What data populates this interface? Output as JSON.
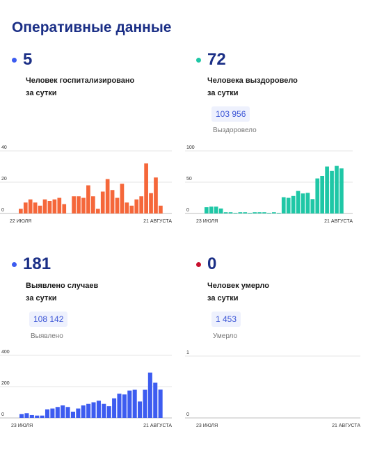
{
  "title": "Оперативные данные",
  "colors": {
    "title": "#1b2f86",
    "hospitalized": "#f5673a",
    "recovered": "#1fc7a6",
    "cases": "#3d5cf0",
    "deaths": "#c8102e",
    "badge_bg": "#eef1fd",
    "badge_text": "#3b55d6"
  },
  "cards": [
    {
      "id": "hospitalized",
      "value": "5",
      "desc_line1": "Человек госпитализировано",
      "desc_line2": "за сутки",
      "total": "",
      "total_label": ""
    },
    {
      "id": "recovered",
      "value": "72",
      "desc_line1": "Человека выздоровело",
      "desc_line2": "за сутки",
      "total": "103 956",
      "total_label": "Выздоровело"
    },
    {
      "id": "cases",
      "value": "181",
      "desc_line1": "Выявлено случаев",
      "desc_line2": "за сутки",
      "total": "108 142",
      "total_label": "Выявлено"
    },
    {
      "id": "deaths",
      "value": "0",
      "desc_line1": "Человек умерло",
      "desc_line2": "за сутки",
      "total": "1 453",
      "total_label": "Умерло"
    }
  ],
  "chart_data": [
    {
      "type": "bar",
      "title": "",
      "xlabel": "",
      "ylabel": "",
      "ylim": [
        0,
        40
      ],
      "yticks": [
        "0",
        "20",
        "40"
      ],
      "x_start": "22 ИЮЛЯ",
      "x_end": "21 АВГУСТА",
      "grid": true,
      "series": [
        {
          "values": [
            3,
            7,
            9,
            7,
            5,
            9,
            8,
            9,
            10,
            6,
            0,
            11,
            11,
            10,
            18,
            11,
            3,
            14,
            22,
            15,
            10,
            19,
            7,
            5,
            9,
            11,
            32,
            13,
            23,
            5
          ]
        }
      ]
    },
    {
      "type": "bar",
      "title": "",
      "xlabel": "",
      "ylabel": "",
      "ylim": [
        0,
        100
      ],
      "yticks": [
        "0",
        "50",
        "100"
      ],
      "x_start": "23 ИЮЛЯ",
      "x_end": "21 АВГУСТА",
      "grid": true,
      "series": [
        {
          "values": [
            10,
            11,
            11,
            8,
            2,
            2,
            1,
            2,
            2,
            1,
            2,
            2,
            2,
            1,
            2,
            1,
            26,
            25,
            28,
            36,
            32,
            33,
            23,
            56,
            60,
            75,
            68,
            76,
            72
          ]
        }
      ]
    },
    {
      "type": "bar",
      "title": "",
      "xlabel": "",
      "ylabel": "",
      "ylim": [
        0,
        400
      ],
      "yticks": [
        "0",
        "200",
        "400"
      ],
      "x_start": "23 ИЮЛЯ",
      "x_end": "21 АВГУСТА",
      "grid": true,
      "series": [
        {
          "values": [
            25,
            30,
            18,
            15,
            15,
            55,
            60,
            70,
            80,
            70,
            40,
            60,
            80,
            90,
            100,
            110,
            90,
            75,
            125,
            155,
            150,
            175,
            180,
            105,
            180,
            290,
            225,
            181
          ]
        }
      ]
    },
    {
      "type": "bar",
      "title": "",
      "xlabel": "",
      "ylabel": "",
      "ylim": [
        0,
        1
      ],
      "yticks": [
        "0",
        "1"
      ],
      "x_start": "23 ИЮЛЯ",
      "x_end": "21 АВГУСТА",
      "grid": true,
      "series": [
        {
          "values": []
        }
      ]
    }
  ]
}
